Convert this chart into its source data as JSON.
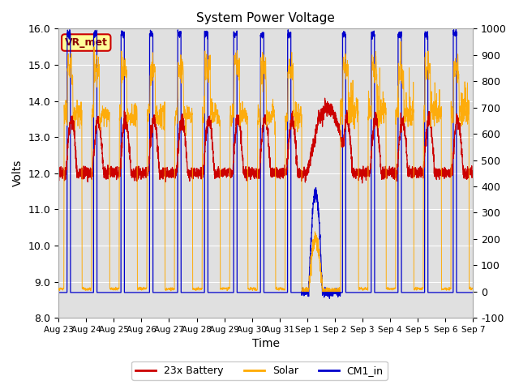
{
  "title": "System Power Voltage",
  "xlabel": "Time",
  "ylabel": "Volts",
  "ylim_left": [
    8.0,
    16.0
  ],
  "ylim_right": [
    -100,
    1000
  ],
  "yticks_left": [
    8.0,
    9.0,
    10.0,
    11.0,
    12.0,
    13.0,
    14.0,
    15.0,
    16.0
  ],
  "yticks_right": [
    -100,
    0,
    100,
    200,
    300,
    400,
    500,
    600,
    700,
    800,
    900,
    1000
  ],
  "xtick_labels": [
    "Aug 23",
    "Aug 24",
    "Aug 25",
    "Aug 26",
    "Aug 27",
    "Aug 28",
    "Aug 29",
    "Aug 30",
    "Aug 31",
    "Sep 1",
    "Sep 2",
    "Sep 3",
    "Sep 4",
    "Sep 5",
    "Sep 6",
    "Sep 7"
  ],
  "legend_labels": [
    "23x Battery",
    "Solar",
    "CM1_in"
  ],
  "legend_colors": [
    "#cc0000",
    "#ffaa00",
    "#0000cc"
  ],
  "annotation_text": "VR_met",
  "annotation_bg": "#ffff99",
  "annotation_border": "#cc0000",
  "background_color": "#ffffff",
  "plot_bg": "#e0e0e0",
  "grid_color": "#ffffff",
  "title_fontsize": 11
}
